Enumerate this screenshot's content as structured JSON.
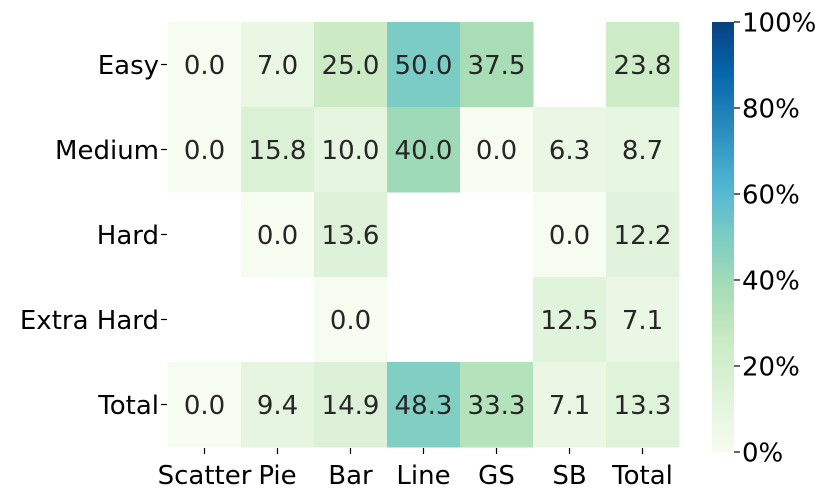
{
  "chart_data": {
    "type": "heatmap",
    "title": "",
    "xlabel": "",
    "ylabel": "",
    "columns": [
      "Scatter",
      "Pie",
      "Bar",
      "Line",
      "GS",
      "SB",
      "Total"
    ],
    "rows": [
      "Easy",
      "Medium",
      "Hard",
      "Extra Hard",
      "Total"
    ],
    "values": [
      [
        0.0,
        7.0,
        25.0,
        50.0,
        37.5,
        null,
        23.8
      ],
      [
        0.0,
        15.8,
        10.0,
        40.0,
        0.0,
        6.3,
        8.7
      ],
      [
        null,
        0.0,
        13.6,
        null,
        null,
        0.0,
        12.2
      ],
      [
        null,
        null,
        0.0,
        null,
        null,
        12.5,
        7.1
      ],
      [
        0.0,
        9.4,
        14.9,
        48.3,
        33.3,
        7.1,
        13.3
      ]
    ],
    "value_format": "one decimal",
    "colorbar": {
      "min": 0,
      "max": 100,
      "ticks": [
        "0%",
        "20%",
        "40%",
        "60%",
        "80%",
        "100%"
      ],
      "colormap": "GnBu",
      "position": "right"
    },
    "missing_cells": "blank (white)",
    "grid": false
  }
}
